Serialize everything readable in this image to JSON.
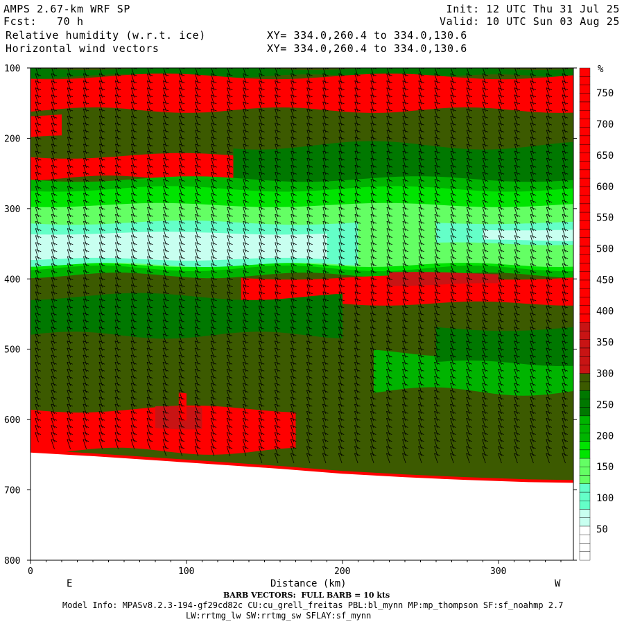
{
  "header": {
    "model": "AMPS 2.67-km WRF SP",
    "fcst": "Fcst:   70 h",
    "field1": "Relative humidity (w.r.t. ice)",
    "field2": "Horizontal wind vectors",
    "init": "Init: 12 UTC Thu 31 Jul 25",
    "valid": "Valid: 10 UTC Sun 03 Aug 25",
    "xy1": "XY= 334.0,260.4 to 334.0,130.6",
    "xy2": "XY= 334.0,260.4 to 334.0,130.6"
  },
  "footer": {
    "barb_note": "BARB VECTORS:  FULL BARB = 10 kts",
    "model_info": "Model Info: MPASv8.2.3-194-gf29cd82c CU:cu_grell_freitas PBL:bl_mynn MP:mp_thompson SF:sf_noahmp 2.7",
    "model_info2": "LW:rrtmg_lw SW:rrtmg_sw SFLAY:sf_mynn"
  },
  "colors": {
    "red": "#ff0000",
    "dark_red": "#c81414",
    "olive": "#3c5a00",
    "dark_green": "#007800",
    "green": "#00b400",
    "bright_green": "#00e400",
    "light_green": "#64ff64",
    "cyan": "#64ffc8",
    "pale_cyan": "#c8fff0"
  },
  "chart_data": {
    "type": "heatmap",
    "title": "Relative humidity (w.r.t. ice)",
    "xlabel": "Distance (km)",
    "ylabel": "",
    "x_ticks": [
      0,
      100,
      200,
      300
    ],
    "y_ticks": [
      100,
      200,
      300,
      400,
      500,
      600,
      700,
      800
    ],
    "xlim": [
      0,
      348
    ],
    "ylim": [
      800,
      100
    ],
    "left_label": "E",
    "right_label": "W",
    "colorbar": {
      "unit": "%",
      "tick_labels": [
        "50",
        "100",
        "150",
        "200",
        "250",
        "300",
        "350",
        "400",
        "450",
        "500",
        "550",
        "600",
        "650",
        "700",
        "750"
      ]
    },
    "terrain_pressure_hPa": [
      [
        0,
        645
      ],
      [
        40,
        650
      ],
      [
        80,
        656
      ],
      [
        120,
        662
      ],
      [
        160,
        668
      ],
      [
        200,
        675
      ],
      [
        240,
        680
      ],
      [
        280,
        684
      ],
      [
        320,
        687
      ],
      [
        348,
        688
      ]
    ],
    "bands": [
      {
        "name": "upper red band",
        "color": "red",
        "pressure_top": 115,
        "pressure_bottom": 155
      },
      {
        "name": "mid red band",
        "color": "red",
        "pressure_top": 225,
        "pressure_bottom": 255
      },
      {
        "name": "moist layer",
        "color": "bright_green",
        "pressure_top": 265,
        "pressure_bottom": 385
      },
      {
        "name": "moist layer core",
        "color": "pale_cyan",
        "pressure_top": 335,
        "pressure_bottom": 380
      },
      {
        "name": "lower red band",
        "color": "red",
        "pressure_top": 400,
        "pressure_bottom": 430
      },
      {
        "name": "near-surface red",
        "color": "red",
        "pressure_top": 585,
        "pressure_bottom": 640
      }
    ],
    "wind_barbs": "Horizontal wind vectors"
  }
}
